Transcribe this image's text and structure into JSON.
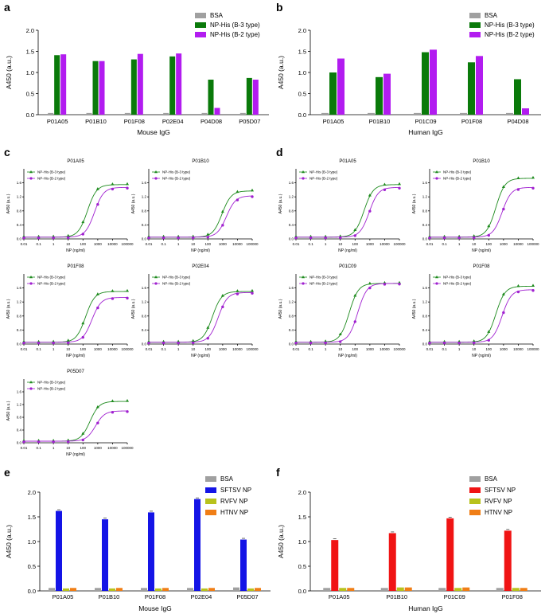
{
  "chart_data": [
    {
      "panel": "a",
      "type": "bar",
      "ylabel": "A450 (a.u.)",
      "xlabel": "Mouse IgG",
      "ylim": [
        0,
        2.0
      ],
      "yticks": [
        "0.0",
        "0.5",
        "1.0",
        "1.5",
        "2.0"
      ],
      "categories": [
        "P01A05",
        "P01B10",
        "P01F08",
        "P02E04",
        "P04D08",
        "P05D07"
      ],
      "series": [
        {
          "name": "BSA",
          "color": "#a0a0a0",
          "values": [
            0.04,
            0.04,
            0.04,
            0.04,
            0.04,
            0.04
          ]
        },
        {
          "name": "NP-His (B-3 type)",
          "color": "#0a7a0a",
          "values": [
            1.41,
            1.27,
            1.31,
            1.38,
            0.83,
            0.87
          ]
        },
        {
          "name": "NP-His (B-2 type)",
          "color": "#b21cf0",
          "values": [
            1.43,
            1.27,
            1.44,
            1.45,
            0.16,
            0.83
          ]
        }
      ]
    },
    {
      "panel": "b",
      "type": "bar",
      "ylabel": "A450 (a.u.)",
      "xlabel": "Human IgG",
      "ylim": [
        0,
        2.0
      ],
      "yticks": [
        "0.0",
        "0.5",
        "1.0",
        "1.5",
        "2.0"
      ],
      "categories": [
        "P01A05",
        "P01B10",
        "P01C09",
        "P01F08",
        "P04D08"
      ],
      "series": [
        {
          "name": "BSA",
          "color": "#a0a0a0",
          "values": [
            0.04,
            0.04,
            0.04,
            0.04,
            0.04
          ]
        },
        {
          "name": "NP-His (B-3 type)",
          "color": "#0a7a0a",
          "values": [
            1.0,
            0.89,
            1.48,
            1.24,
            0.84
          ]
        },
        {
          "name": "NP-His (B-2 type)",
          "color": "#b21cf0",
          "values": [
            1.33,
            0.97,
            1.54,
            1.39,
            0.15
          ]
        }
      ]
    },
    {
      "panel": "c",
      "type": "line",
      "xlabel": "NP (ng/ml)",
      "ylabel": "A450 (a.u.)",
      "xticks": [
        "0.01",
        "0.1",
        "1",
        "10",
        "100",
        "1000",
        "10000",
        "100000"
      ],
      "yticks": [
        "0.0",
        "0.4",
        "0.8",
        "1.2",
        "1.6"
      ],
      "ylim": [
        0,
        2.0
      ],
      "legend": [
        "NP-His (B-3 type)",
        "NP-His (B-2 type)"
      ],
      "subplots": [
        {
          "title": "P01A05",
          "b3": {
            "top": 1.55,
            "ec50": 200,
            "hill": 1.4
          },
          "b2": {
            "top": 1.47,
            "ec50": 600,
            "hill": 1.4
          }
        },
        {
          "title": "P01B10",
          "b3": {
            "top": 1.37,
            "ec50": 900,
            "hill": 1.4
          },
          "b2": {
            "top": 1.23,
            "ec50": 1800,
            "hill": 1.4
          }
        },
        {
          "title": "P01F08",
          "b3": {
            "top": 1.5,
            "ec50": 150,
            "hill": 1.4
          },
          "b2": {
            "top": 1.33,
            "ec50": 400,
            "hill": 1.4
          }
        },
        {
          "title": "P02E04",
          "b3": {
            "top": 1.5,
            "ec50": 200,
            "hill": 1.4
          },
          "b2": {
            "top": 1.47,
            "ec50": 500,
            "hill": 1.4
          }
        },
        {
          "title": "P05D07",
          "b3": {
            "top": 1.3,
            "ec50": 300,
            "hill": 1.4
          },
          "b2": {
            "top": 1.0,
            "ec50": 700,
            "hill": 1.4
          }
        }
      ]
    },
    {
      "panel": "d",
      "type": "line",
      "xlabel": "NP (ng/ml)",
      "ylabel": "A450 (a.u.)",
      "xticks": [
        "0.01",
        "0.1",
        "1",
        "10",
        "100",
        "1000",
        "10000",
        "100000"
      ],
      "yticks": [
        "0.0",
        "0.4",
        "0.8",
        "1.2",
        "1.6"
      ],
      "ylim": [
        0,
        2.0
      ],
      "legend": [
        "NP-His (B-3 type)",
        "NP-His (B-2 type)"
      ],
      "subplots": [
        {
          "title": "P01A05",
          "b3": {
            "top": 1.55,
            "ec50": 400,
            "hill": 1.4
          },
          "b2": {
            "top": 1.47,
            "ec50": 900,
            "hill": 1.4
          }
        },
        {
          "title": "P01B10",
          "b3": {
            "top": 1.73,
            "ec50": 300,
            "hill": 1.4
          },
          "b2": {
            "top": 1.47,
            "ec50": 800,
            "hill": 1.4
          }
        },
        {
          "title": "P01C09",
          "b3": {
            "top": 1.73,
            "ec50": 40,
            "hill": 1.4
          },
          "b2": {
            "top": 1.73,
            "ec50": 150,
            "hill": 1.4
          }
        },
        {
          "title": "P01F08",
          "b3": {
            "top": 1.65,
            "ec50": 300,
            "hill": 1.4
          },
          "b2": {
            "top": 1.55,
            "ec50": 800,
            "hill": 1.4
          }
        }
      ]
    },
    {
      "panel": "e",
      "type": "bar",
      "ylabel": "A450 (a.u.)",
      "xlabel": "Mouse IgG",
      "ylim": [
        0,
        2.0
      ],
      "yticks": [
        "0.0",
        "0.5",
        "1.0",
        "1.5",
        "2.0"
      ],
      "categories": [
        "P01A05",
        "P01B10",
        "P01F08",
        "P02E04",
        "P05D07"
      ],
      "series": [
        {
          "name": "BSA",
          "color": "#a0a0a0",
          "values": [
            0.06,
            0.06,
            0.06,
            0.06,
            0.07
          ]
        },
        {
          "name": "SFTSV NP",
          "color": "#1414e6",
          "values": [
            1.62,
            1.45,
            1.59,
            1.86,
            1.04
          ]
        },
        {
          "name": "RVFV NP",
          "color": "#b8c21c",
          "values": [
            0.05,
            0.05,
            0.05,
            0.05,
            0.05
          ]
        },
        {
          "name": "HTNV NP",
          "color": "#f07e16",
          "values": [
            0.06,
            0.06,
            0.06,
            0.06,
            0.06
          ]
        }
      ]
    },
    {
      "panel": "f",
      "type": "bar",
      "ylabel": "A450 (a.u.)",
      "xlabel": "Human IgG",
      "ylim": [
        0,
        2.0
      ],
      "yticks": [
        "0.0",
        "0.5",
        "1.0",
        "1.5",
        "2.0"
      ],
      "categories": [
        "P01A05",
        "P01B10",
        "P01C09",
        "P01F08"
      ],
      "series": [
        {
          "name": "BSA",
          "color": "#a0a0a0",
          "values": [
            0.06,
            0.06,
            0.06,
            0.06
          ]
        },
        {
          "name": "SFTSV NP",
          "color": "#f01414",
          "values": [
            1.03,
            1.17,
            1.47,
            1.22
          ]
        },
        {
          "name": "RVFV NP",
          "color": "#b8c21c",
          "values": [
            0.06,
            0.07,
            0.06,
            0.06
          ]
        },
        {
          "name": "HTNV NP",
          "color": "#f07e16",
          "values": [
            0.06,
            0.07,
            0.07,
            0.06
          ]
        }
      ]
    }
  ],
  "curve_colors": {
    "b3": "#1d8a1d",
    "b2": "#a020d0"
  }
}
